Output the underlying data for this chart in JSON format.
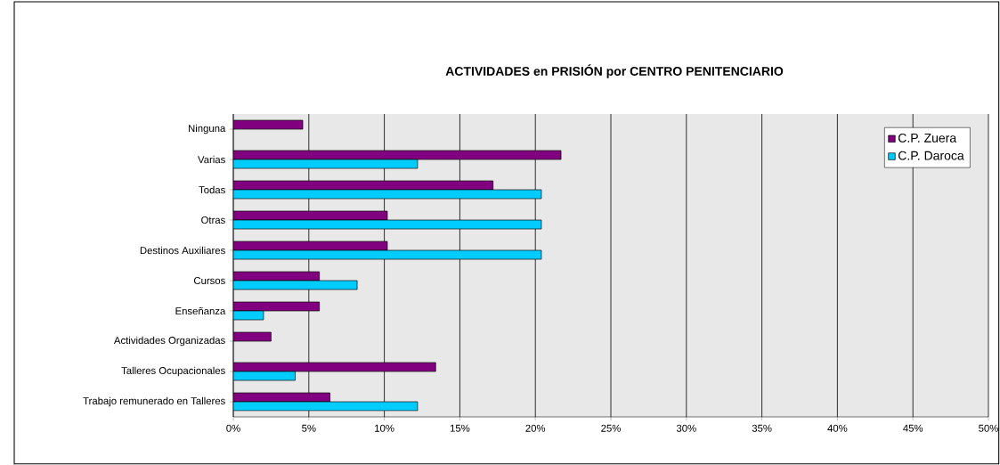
{
  "chart_data": {
    "type": "bar",
    "orientation": "horizontal",
    "title": "ACTIVIDADES en PRISIÓN por CENTRO PENITENCIARIO",
    "categories": [
      "Ninguna",
      "Varias",
      "Todas",
      "Otras",
      "Destinos Auxiliares",
      "Cursos",
      "Enseñanza",
      "Actividades Organizadas",
      "Talleres Ocupacionales",
      "Trabajo remunerado en Talleres"
    ],
    "series": [
      {
        "name": "C.P. Zuera",
        "color": "#800080",
        "values": [
          4.6,
          21.7,
          17.2,
          10.2,
          10.2,
          5.7,
          5.7,
          2.5,
          13.4,
          6.4
        ]
      },
      {
        "name": "C.P. Daroca",
        "color": "#00ccff",
        "values": [
          null,
          12.2,
          20.4,
          20.4,
          20.4,
          8.2,
          2.0,
          null,
          4.1,
          12.2
        ]
      }
    ],
    "xlim": [
      0,
      50
    ],
    "xticks": [
      {
        "value": 0,
        "label": "0%"
      },
      {
        "value": 5,
        "label": "5%"
      },
      {
        "value": 10,
        "label": "10%"
      },
      {
        "value": 15,
        "label": "15%"
      },
      {
        "value": 20,
        "label": "20%"
      },
      {
        "value": 25,
        "label": "25%"
      },
      {
        "value": 30,
        "label": "30%"
      },
      {
        "value": 35,
        "label": "35%"
      },
      {
        "value": 40,
        "label": "40%"
      },
      {
        "value": 45,
        "label": "45%"
      },
      {
        "value": 50,
        "label": "50%"
      }
    ],
    "grid": "x",
    "legend": "top right"
  }
}
